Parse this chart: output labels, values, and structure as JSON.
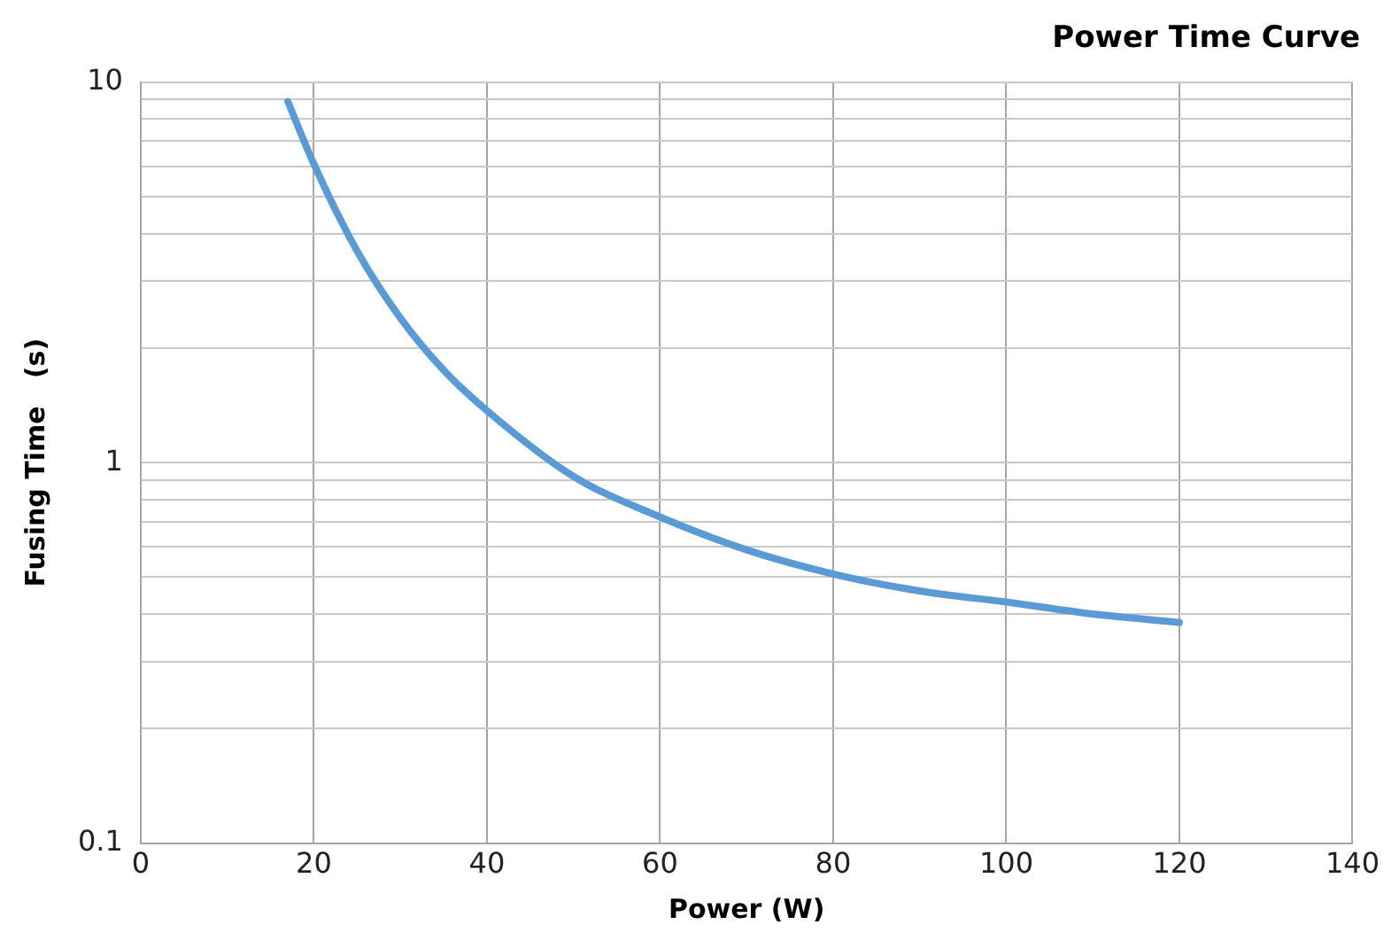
{
  "chart_data": {
    "type": "line",
    "title": "Power Time Curve",
    "xlabel": "Power (W)",
    "ylabel": "Fusing Time   (s)",
    "series": [
      {
        "color": "#5b9bd5",
        "x": [
          17,
          20,
          25,
          30,
          35,
          40,
          50,
          60,
          70,
          80,
          90,
          100,
          110,
          120
        ],
        "values": [
          8.9,
          6.1,
          3.6,
          2.4,
          1.75,
          1.37,
          0.92,
          0.72,
          0.59,
          0.51,
          0.46,
          0.43,
          0.4,
          0.38
        ]
      }
    ],
    "xlim": [
      0,
      140
    ],
    "xticks": [
      0,
      20,
      40,
      60,
      80,
      100,
      120,
      140
    ],
    "ylim": [
      0.1,
      10
    ],
    "yticks": [
      0.1,
      1,
      10
    ],
    "log": "y",
    "grid": true,
    "legend": false,
    "marker": "none",
    "line_style": "solid"
  }
}
